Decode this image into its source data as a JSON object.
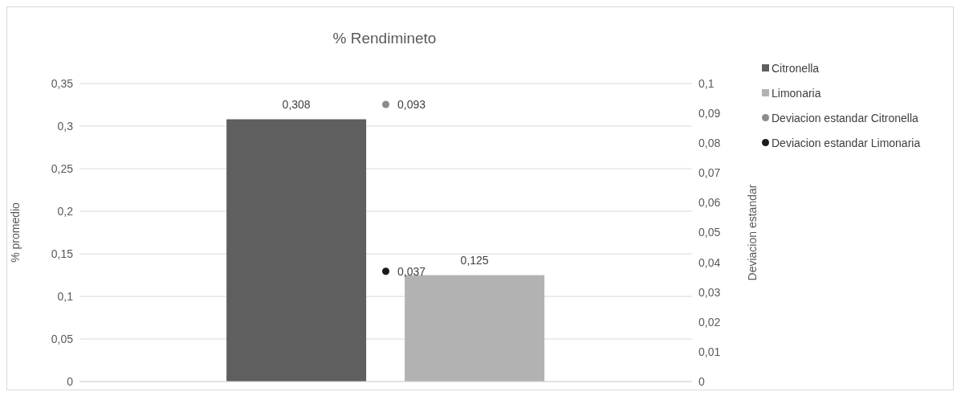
{
  "chart_data": {
    "type": "bar",
    "title": "% Rendimineto",
    "ylabel": "% promedio",
    "y2label": "Deviacion estandar",
    "categories": [
      null
    ],
    "series": [
      {
        "name": "Citronella",
        "color": "#5f5f5f",
        "values": [
          0.308
        ],
        "value_labels": [
          "0,308"
        ]
      },
      {
        "name": "Limonaria",
        "color": "#b2b2b2",
        "values": [
          0.125
        ],
        "value_labels": [
          "0,125"
        ]
      },
      {
        "name": "Deviacion estandar Citronella",
        "type": "scatter",
        "axis": "y2",
        "color": "#8c8c8c",
        "values": [
          0.093
        ],
        "value_labels": [
          "0,093"
        ]
      },
      {
        "name": "Deviacion estandar Limonaria",
        "type": "scatter",
        "axis": "y2",
        "color": "#1a1a1a",
        "values": [
          0.037
        ],
        "value_labels": [
          "0,037"
        ]
      }
    ],
    "ylim": [
      0,
      0.35
    ],
    "yticks": [
      0,
      {
        "value": 0.05,
        "label": "0,05"
      },
      {
        "value": 0.1,
        "label": "0,1"
      },
      {
        "value": 0.15,
        "label": "0,15"
      },
      {
        "value": 0.2,
        "label": "0,2"
      },
      {
        "value": 0.25,
        "label": "0,25"
      },
      {
        "value": 0.3,
        "label": "0,3"
      },
      {
        "value": 0.35,
        "label": "0,35"
      }
    ],
    "y2lim": [
      0,
      0.1
    ],
    "y2ticks": [
      0,
      {
        "value": 0.01,
        "label": "0,01"
      },
      {
        "value": 0.02,
        "label": "0,02"
      },
      {
        "value": 0.03,
        "label": "0,03"
      },
      {
        "value": 0.04,
        "label": "0,04"
      },
      {
        "value": 0.05,
        "label": "0,05"
      },
      {
        "value": 0.06,
        "label": "0,06"
      },
      {
        "value": 0.07,
        "label": "0,07"
      },
      {
        "value": 0.08,
        "label": "0,08"
      },
      {
        "value": 0.09,
        "label": "0,09"
      },
      {
        "value": 0.1,
        "label": "0,1"
      }
    ],
    "grid": "y",
    "legend": "top right",
    "marker": "circle"
  }
}
